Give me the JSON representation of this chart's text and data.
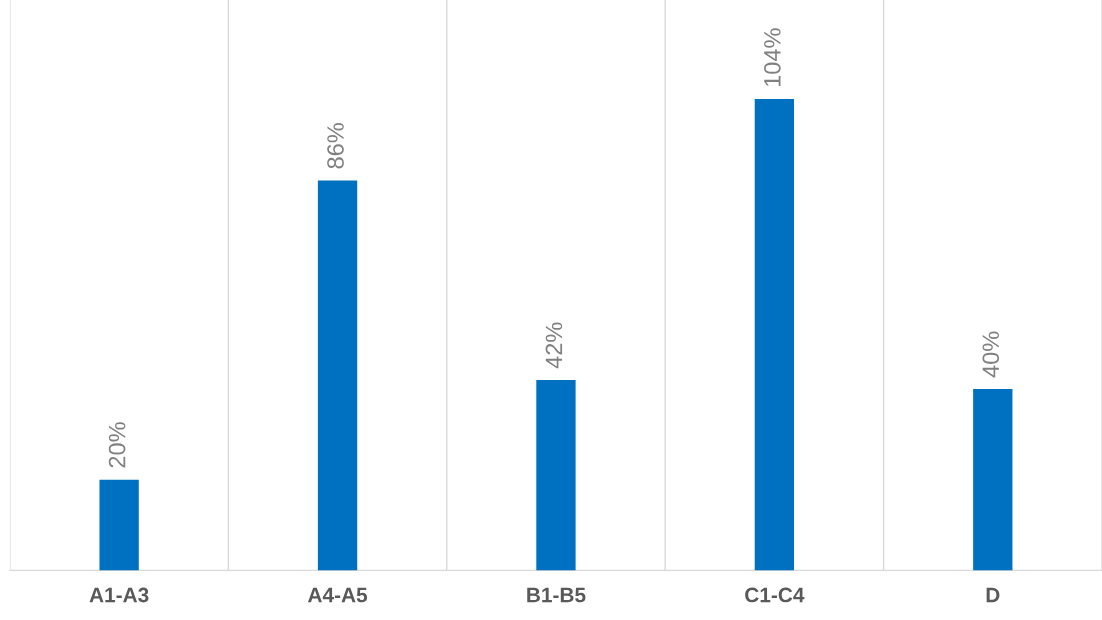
{
  "chart_data": {
    "type": "bar",
    "categories": [
      "A1-A3",
      "A4-A5",
      "B1-B5",
      "C1-C4",
      "D"
    ],
    "values": [
      20,
      86,
      42,
      104,
      40
    ],
    "value_labels": [
      "20%",
      "86%",
      "42%",
      "104%",
      "40%"
    ],
    "color": "#0070c0",
    "grid": "x",
    "legend": false
  }
}
